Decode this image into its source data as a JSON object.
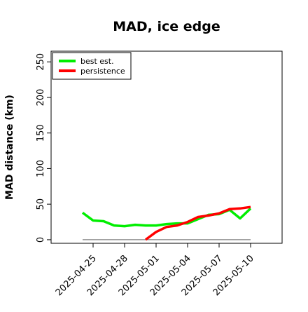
{
  "chart_data": {
    "type": "line",
    "title": "MAD, ice edge",
    "xlabel": "",
    "ylabel": "MAD distance (km)",
    "ylim": [
      -5,
      265
    ],
    "yticks": [
      0,
      50,
      100,
      150,
      200,
      250
    ],
    "xlim": [
      "2025-04-21",
      "2025-05-13"
    ],
    "xticks": [
      "2025-04-25",
      "2025-04-28",
      "2025-05-01",
      "2025-05-04",
      "2025-05-07",
      "2025-05-10"
    ],
    "x": [
      "2025-04-24",
      "2025-04-25",
      "2025-04-26",
      "2025-04-27",
      "2025-04-28",
      "2025-04-29",
      "2025-04-30",
      "2025-05-01",
      "2025-05-02",
      "2025-05-03",
      "2025-05-04",
      "2025-05-05",
      "2025-05-06",
      "2025-05-07",
      "2025-05-08",
      "2025-05-09",
      "2025-05-10"
    ],
    "series": [
      {
        "name": "best est.",
        "color": "#00ee00",
        "values": [
          38,
          27,
          26,
          20,
          19,
          21,
          20,
          20,
          22,
          23,
          23,
          29,
          35,
          36,
          42,
          30,
          44
        ]
      },
      {
        "name": "persistence",
        "color": "#ff0000",
        "values": [
          null,
          null,
          null,
          null,
          null,
          null,
          0,
          11,
          18,
          20,
          25,
          32,
          34,
          37,
          43,
          44,
          46
        ]
      },
      {
        "color": "#808080",
        "values": [
          0,
          0,
          0,
          0,
          0,
          0,
          0,
          0,
          0,
          0,
          0,
          0,
          0,
          0,
          0,
          0,
          0
        ]
      }
    ],
    "legend_position": "top-left",
    "grid": false
  }
}
